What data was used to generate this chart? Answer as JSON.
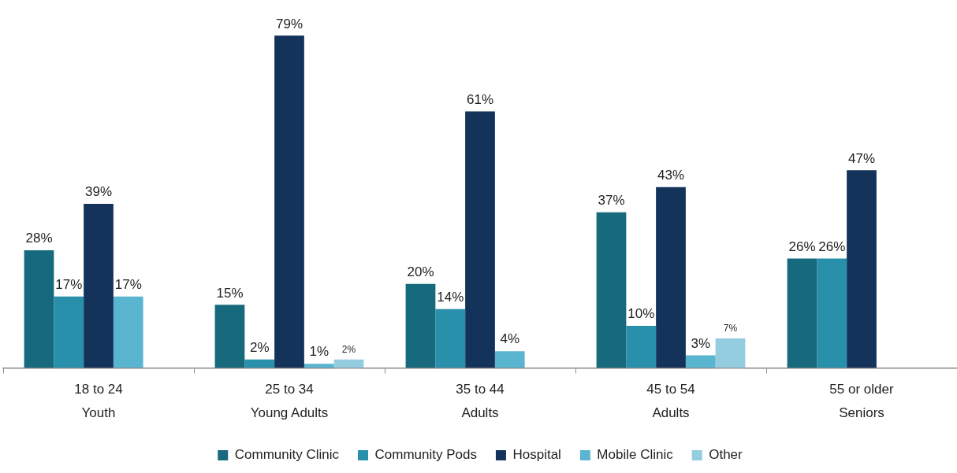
{
  "chart_data": {
    "type": "bar",
    "categories": [
      "18 to 24\nYouth",
      "25 to 34\nYoung Adults",
      "35 to 44\nAdults",
      "45 to 54\nAdults",
      "55 or older\nSeniors"
    ],
    "series": [
      {
        "name": "Community Clinic",
        "color": "#176a7e",
        "values": [
          28,
          15,
          20,
          37,
          26
        ],
        "value_labels": [
          "28%",
          "15%",
          "20%",
          "37%",
          "26%"
        ]
      },
      {
        "name": "Community Pods",
        "color": "#2990ab",
        "values": [
          17,
          2,
          14,
          10,
          26
        ],
        "value_labels": [
          "17%",
          "2%",
          "14%",
          "10%",
          "26%"
        ]
      },
      {
        "name": "Hospital",
        "color": "#14335b",
        "values": [
          39,
          79,
          61,
          43,
          47
        ],
        "value_labels": [
          "39%",
          "79%",
          "61%",
          "43%",
          "47%"
        ]
      },
      {
        "name": "Mobile Clinic",
        "color": "#5ab5d0",
        "values": [
          17,
          1,
          4,
          3,
          null
        ],
        "value_labels": [
          "17%",
          "1%",
          "4%",
          "3%",
          null
        ]
      },
      {
        "name": "Other",
        "color": "#94cde0",
        "values": [
          null,
          2,
          null,
          7,
          null
        ],
        "value_labels": [
          null,
          "2%",
          null,
          "7%",
          null
        ]
      }
    ],
    "legend": "bottom",
    "tick_labels": "x"
  }
}
